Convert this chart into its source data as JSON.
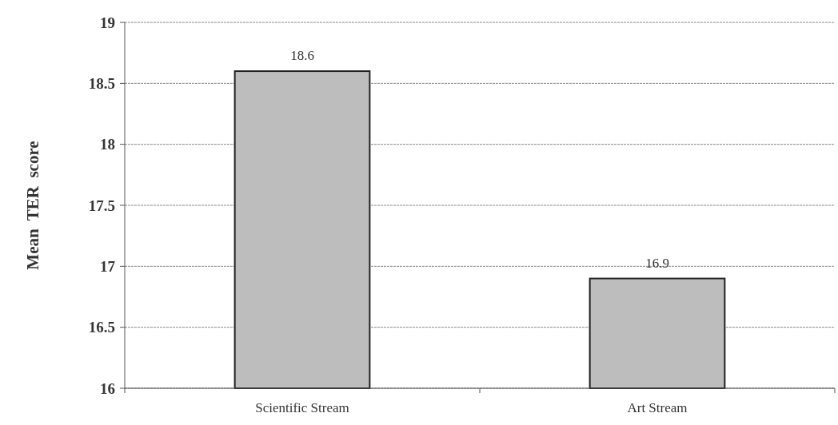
{
  "chart_data": {
    "type": "bar",
    "ylabel": "Mean  TER  score",
    "categories": [
      "Scientific Stream",
      "Art Stream"
    ],
    "values": [
      18.6,
      16.9
    ],
    "color": "#bdbdbd",
    "ylim": [
      16,
      19
    ],
    "yticks": [
      16,
      16.5,
      17,
      17.5,
      18,
      18.5,
      19
    ],
    "grid": "y",
    "data_labels": true
  }
}
